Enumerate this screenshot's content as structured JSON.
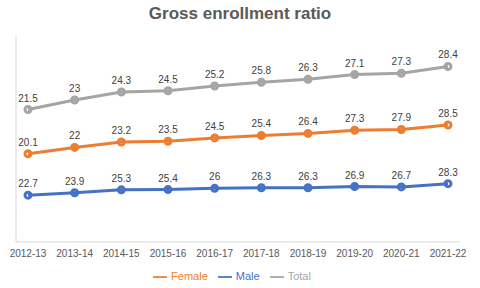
{
  "chart_data": {
    "type": "line",
    "title": "Gross enrollment ratio",
    "categories": [
      "2012-13",
      "2013-14",
      "2014-15",
      "2015-16",
      "2016-17",
      "2017-18",
      "2018-19",
      "2019-20",
      "2020-21",
      "2021-22"
    ],
    "series": [
      {
        "name": "Male",
        "color": "#4472c4",
        "values": [
          22.7,
          23.9,
          25.3,
          25.4,
          26,
          26.3,
          26.3,
          26.9,
          26.7,
          28.3
        ]
      },
      {
        "name": "Female",
        "color": "#ed7d31",
        "values": [
          20.1,
          22,
          23.2,
          23.5,
          24.5,
          25.4,
          26.4,
          27.3,
          27.9,
          28.5
        ]
      },
      {
        "name": "Total",
        "color": "#a5a5a5",
        "values": [
          21.5,
          23,
          24.3,
          24.5,
          25.2,
          25.8,
          26.3,
          27.1,
          27.3,
          28.4
        ]
      }
    ],
    "stacked": true,
    "ylim": [
      0,
      100
    ],
    "data_labels": true,
    "marker": "circle",
    "legend": "bottom",
    "grid": false,
    "tick_labels": "x"
  }
}
